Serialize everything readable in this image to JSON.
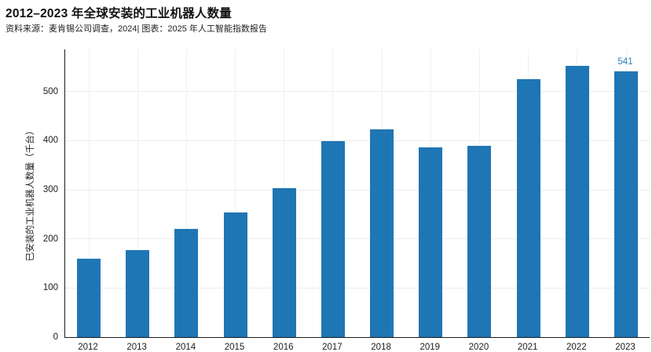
{
  "header": {
    "title": "2012–2023 年全球安装的工业机器人数量",
    "source_line": "资料来源：麦肯锡公司调查，2024| 图表：2025 年人工智能指数报告"
  },
  "colors": {
    "bar": "#1f76b4",
    "annotation": "#2b7bb9",
    "axis": "#1a1a1a",
    "grid": "#ededed"
  },
  "chart_data": {
    "type": "bar",
    "title": "2012–2023 年全球安装的工业机器人数量",
    "subtitle": "资料来源：麦肯锡公司调查，2024| 图表：2025 年人工智能指数报告",
    "categories": [
      "2012",
      "2013",
      "2014",
      "2015",
      "2016",
      "2017",
      "2018",
      "2019",
      "2020",
      "2021",
      "2022",
      "2023"
    ],
    "values": [
      159,
      178,
      221,
      254,
      304,
      400,
      423,
      387,
      390,
      526,
      553,
      541
    ],
    "xlabel": "",
    "ylabel": "已安装的工业机器人数量（千台）",
    "ylim": [
      0,
      586
    ],
    "yticks": [
      0,
      100,
      200,
      300,
      400,
      500
    ],
    "grid": true,
    "legend": "none",
    "bar_color": "#1f76b4",
    "annotations": [
      {
        "category": "2023",
        "text": "541"
      }
    ]
  }
}
